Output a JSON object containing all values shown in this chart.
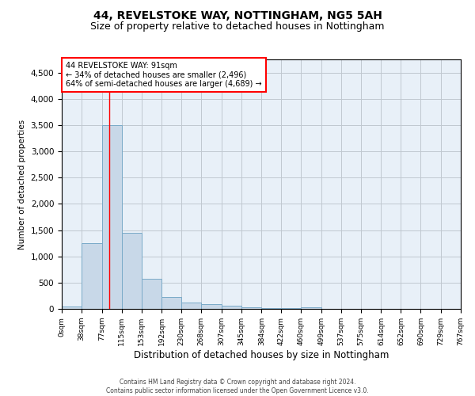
{
  "title1": "44, REVELSTOKE WAY, NOTTINGHAM, NG5 5AH",
  "title2": "Size of property relative to detached houses in Nottingham",
  "xlabel": "Distribution of detached houses by size in Nottingham",
  "ylabel": "Number of detached properties",
  "footer1": "Contains HM Land Registry data © Crown copyright and database right 2024.",
  "footer2": "Contains public sector information licensed under the Open Government Licence v3.0.",
  "annotation_title": "44 REVELSTOKE WAY: 91sqm",
  "annotation_line2": "← 34% of detached houses are smaller (2,496)",
  "annotation_line3": "64% of semi-detached houses are larger (4,689) →",
  "bin_edges": [
    0,
    38,
    77,
    115,
    153,
    192,
    230,
    268,
    307,
    345,
    384,
    422,
    460,
    499,
    537,
    575,
    614,
    652,
    690,
    729,
    767
  ],
  "bin_counts": [
    50,
    1250,
    3500,
    1450,
    580,
    230,
    115,
    85,
    55,
    30,
    20,
    10,
    30,
    5,
    0,
    0,
    0,
    0,
    0,
    0
  ],
  "bar_color": "#c8d8e8",
  "bar_edge_color": "#7aaac8",
  "red_line_x": 91,
  "ylim": [
    0,
    4750
  ],
  "yticks": [
    0,
    500,
    1000,
    1500,
    2000,
    2500,
    3000,
    3500,
    4000,
    4500
  ],
  "annotation_box_color": "white",
  "annotation_box_edge": "red",
  "grid_color": "#c0c8d0",
  "bg_color": "#e8f0f8",
  "title1_fontsize": 10,
  "title2_fontsize": 9
}
